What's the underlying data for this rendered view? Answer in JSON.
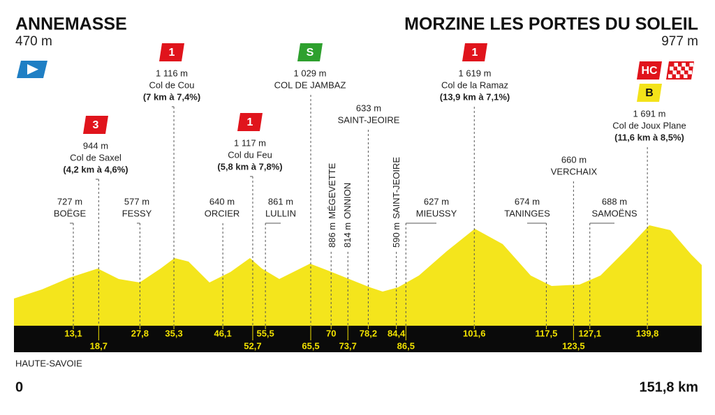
{
  "header": {
    "start": {
      "name": "ANNEMASSE",
      "altitude": "470 m"
    },
    "finish": {
      "name": "MORZINE LES PORTES DU SOLEIL",
      "altitude": "977 m"
    }
  },
  "region": "HAUTE-SAVOIE",
  "distance": {
    "start": {
      "km": 0,
      "label": "0"
    },
    "end": {
      "km": 151.8,
      "label": "151,8 km"
    }
  },
  "points": [
    {
      "km": 13.1,
      "km_label": "13,1",
      "altitude": "727 m",
      "name": "BOËGE"
    },
    {
      "km": 18.7,
      "km_label": "18,7",
      "badges": [
        "3"
      ],
      "altitude": "944 m",
      "name": "Col de Saxel",
      "climb": "(4,2 km à 4,6%)"
    },
    {
      "km": 27.8,
      "km_label": "27,8",
      "altitude": "577 m",
      "name": "FESSY"
    },
    {
      "km": 35.3,
      "km_label": "35,3",
      "badges": [
        "1"
      ],
      "altitude": "1 116 m",
      "name": "Col de Cou",
      "climb": "(7 km à 7,4%)"
    },
    {
      "km": 46.1,
      "km_label": "46,1",
      "altitude": "640 m",
      "name": "ORCIER"
    },
    {
      "km": 52.7,
      "km_label": "52,7",
      "badges": [
        "1"
      ],
      "altitude": "1 117 m",
      "name": "Col du Feu",
      "climb": "(5,8 km à 7,8%)"
    },
    {
      "km": 55.5,
      "km_label": "55,5",
      "altitude": "861 m",
      "name": "LULLIN"
    },
    {
      "km": 65.5,
      "km_label": "65,5",
      "badges": [
        "S"
      ],
      "altitude": "1 029 m",
      "name": "COL DE JAMBAZ"
    },
    {
      "km": 70,
      "km_label": "70",
      "altitude": "886 m",
      "name": "MÉGEVETTE"
    },
    {
      "km": 73.7,
      "km_label": "73,7",
      "altitude": "814 m",
      "name": "ONNION"
    },
    {
      "km": 78.2,
      "km_label": "78,2",
      "altitude": "633 m",
      "name": "SAINT-JEOIRE"
    },
    {
      "km": 84.4,
      "km_label": "84,4",
      "altitude": "590 m",
      "name": "SAINT-JEOIRE"
    },
    {
      "km": 86.5,
      "km_label": "86,5",
      "altitude": "627 m",
      "name": "MIEUSSY"
    },
    {
      "km": 101.6,
      "km_label": "101,6",
      "badges": [
        "1"
      ],
      "altitude": "1 619 m",
      "name": "Col de la Ramaz",
      "climb": "(13,9 km à 7,1%)"
    },
    {
      "km": 117.5,
      "km_label": "117,5",
      "altitude": "674 m",
      "name": "TANINGES"
    },
    {
      "km": 123.5,
      "km_label": "123,5",
      "altitude": "660 m",
      "name": "VERCHAIX"
    },
    {
      "km": 127.1,
      "km_label": "127,1",
      "altitude": "688 m",
      "name": "SAMOËNS"
    },
    {
      "km": 139.8,
      "km_label": "139,8",
      "badges": [
        "HC",
        "B"
      ],
      "altitude": "1 691 m",
      "name": "Col de Joux Plane",
      "climb": "(11,6 km à 8,5%)"
    }
  ]
}
